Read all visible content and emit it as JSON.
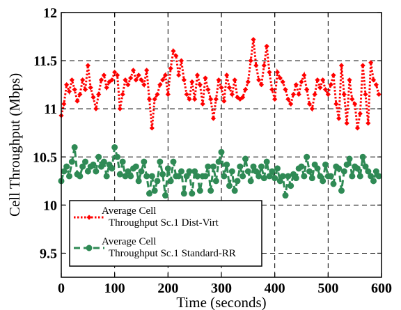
{
  "chart_data": {
    "type": "line",
    "xlabel": "Time (seconds)",
    "ylabel": "Cell Throughput (Mbps)",
    "xlim": [
      0,
      600
    ],
    "ylim": [
      9.25,
      12
    ],
    "xticks": [
      0,
      100,
      200,
      300,
      400,
      500,
      600
    ],
    "yticks": [
      9.5,
      10,
      10.5,
      11,
      11.5,
      12
    ],
    "ytick_labels": [
      "9.5",
      "10",
      "10.5",
      "11",
      "11.5",
      "12"
    ],
    "grid": true,
    "legend_position": "bottom-left",
    "x": [
      0,
      5,
      10,
      15,
      20,
      25,
      30,
      35,
      40,
      45,
      50,
      55,
      60,
      65,
      70,
      75,
      80,
      85,
      90,
      95,
      100,
      105,
      110,
      115,
      120,
      125,
      130,
      135,
      140,
      145,
      150,
      155,
      160,
      165,
      170,
      175,
      180,
      185,
      190,
      195,
      200,
      205,
      210,
      215,
      220,
      225,
      230,
      235,
      240,
      245,
      250,
      255,
      260,
      265,
      270,
      275,
      280,
      285,
      290,
      295,
      300,
      305,
      310,
      315,
      320,
      325,
      330,
      335,
      340,
      345,
      350,
      355,
      360,
      365,
      370,
      375,
      380,
      385,
      390,
      395,
      400,
      405,
      410,
      415,
      420,
      425,
      430,
      435,
      440,
      445,
      450,
      455,
      460,
      465,
      470,
      475,
      480,
      485,
      490,
      495,
      500,
      505,
      510,
      515,
      520,
      525,
      530,
      535,
      540,
      545,
      550,
      555,
      560,
      565,
      570,
      575,
      580,
      585,
      590,
      595
    ],
    "series": [
      {
        "name": "Average Cell\nThroughput Sc.1  Dist-Virt",
        "color": "#ff0000",
        "line_style": "dotted",
        "marker": "diamond",
        "values": [
          10.93,
          11.05,
          11.25,
          11.18,
          11.3,
          11.2,
          11.08,
          11.15,
          11.3,
          11.2,
          11.45,
          11.22,
          11.12,
          11.0,
          11.15,
          11.3,
          11.35,
          11.22,
          11.28,
          11.3,
          11.38,
          11.35,
          11.0,
          11.15,
          11.3,
          11.25,
          11.32,
          11.4,
          11.3,
          11.35,
          11.3,
          11.25,
          11.4,
          11.1,
          10.8,
          11.1,
          11.15,
          11.25,
          11.3,
          11.35,
          11.15,
          11.42,
          11.6,
          11.55,
          11.35,
          11.5,
          11.3,
          11.15,
          11.1,
          11.28,
          11.1,
          11.35,
          11.25,
          11.05,
          11.32,
          11.2,
          11.1,
          10.9,
          11.1,
          11.3,
          11.22,
          11.08,
          11.35,
          11.22,
          11.15,
          11.3,
          11.12,
          11.1,
          11.12,
          11.2,
          11.28,
          11.5,
          11.72,
          11.45,
          11.3,
          11.25,
          11.45,
          11.65,
          11.38,
          11.2,
          11.1,
          11.38,
          11.32,
          11.28,
          11.2,
          11.1,
          11.05,
          11.15,
          11.25,
          11.15,
          11.28,
          11.35,
          11.2,
          11.05,
          11.0,
          11.15,
          11.3,
          11.22,
          11.3,
          11.2,
          11.15,
          11.25,
          11.35,
          11.05,
          10.9,
          11.45,
          11.15,
          10.85,
          11.3,
          11.1,
          11.05,
          10.8,
          10.95,
          11.45,
          11.15,
          10.85,
          11.48,
          11.3,
          11.25,
          11.15
        ]
      },
      {
        "name": "Average Cell\nThroughput Sc.1  Standard-RR",
        "color": "#2f8a55",
        "line_style": "dashed",
        "marker": "circle",
        "values": [
          10.25,
          10.35,
          10.4,
          10.3,
          10.45,
          10.6,
          10.32,
          10.3,
          10.4,
          10.45,
          10.35,
          10.4,
          10.42,
          10.35,
          10.5,
          10.4,
          10.45,
          10.3,
          10.42,
          10.38,
          10.6,
          10.5,
          10.32,
          10.45,
          10.3,
          10.35,
          10.3,
          10.38,
          10.4,
          10.25,
          10.35,
          10.45,
          10.3,
          10.12,
          10.3,
          10.15,
          10.25,
          10.45,
          10.32,
          10.1,
          10.38,
          10.25,
          10.45,
          10.3,
          10.3,
          10.35,
          10.12,
          10.3,
          10.35,
          10.12,
          10.35,
          10.3,
          10.15,
          10.3,
          10.3,
          10.4,
          10.15,
          10.4,
          10.25,
          10.45,
          10.55,
          10.3,
          10.42,
          10.2,
          10.35,
          10.15,
          10.25,
          10.4,
          10.3,
          10.48,
          10.35,
          10.25,
          10.4,
          10.35,
          10.3,
          10.4,
          10.28,
          10.45,
          10.3,
          10.35,
          10.28,
          10.38,
          10.25,
          10.3,
          10.1,
          10.3,
          10.2,
          10.32,
          10.28,
          10.38,
          10.4,
          10.3,
          10.5,
          10.35,
          10.28,
          10.42,
          10.38,
          10.3,
          10.25,
          10.42,
          10.3,
          10.3,
          10.22,
          10.4,
          10.38,
          10.15,
          10.35,
          10.42,
          10.48,
          10.3,
          10.4,
          10.38,
          10.3,
          10.5,
          10.4,
          10.35,
          10.3,
          10.25,
          10.35,
          10.3
        ]
      }
    ]
  }
}
